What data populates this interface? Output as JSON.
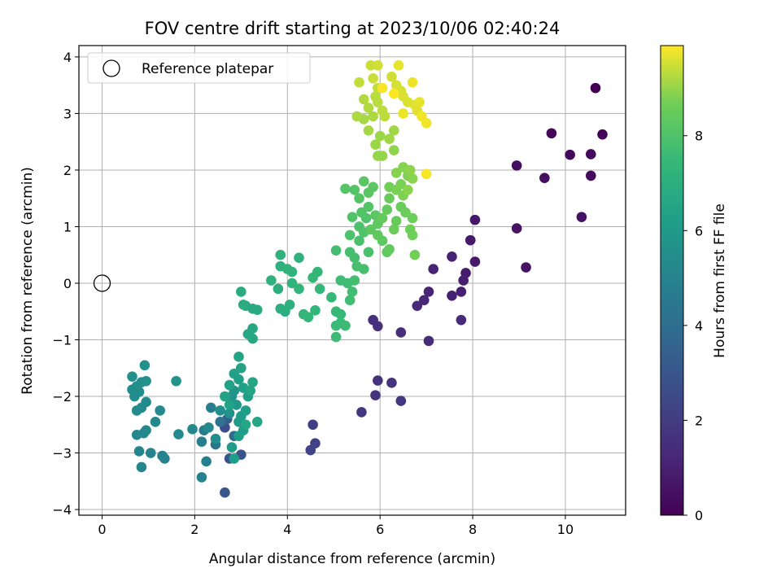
{
  "chart_data": {
    "type": "scatter",
    "title": "FOV centre drift starting at 2023/10/06 02:40:24",
    "xlabel": "Angular distance from reference (arcmin)",
    "ylabel": "Rotation from reference (arcmin)",
    "xlim": [
      -0.5,
      11.3
    ],
    "ylim": [
      -4.1,
      4.2
    ],
    "xticks": [
      0,
      2,
      4,
      6,
      8,
      10
    ],
    "yticks": [
      -4,
      -3,
      -2,
      -1,
      0,
      1,
      2,
      3,
      4
    ],
    "grid": true,
    "colormap": "viridis",
    "colorbar": {
      "label": "Hours from first FF file",
      "range": [
        0,
        9.9
      ],
      "ticks": [
        0,
        2,
        4,
        6,
        8
      ]
    },
    "legend": {
      "position": "top-left",
      "entries": [
        "Reference platepar"
      ]
    },
    "reference_point": {
      "x": 0,
      "y": 0
    },
    "points": [
      {
        "x": 10.65,
        "y": 3.45,
        "h": 0.0
      },
      {
        "x": 10.8,
        "y": 2.63,
        "h": 0.1
      },
      {
        "x": 9.7,
        "y": 2.65,
        "h": 0.2
      },
      {
        "x": 10.1,
        "y": 2.27,
        "h": 0.25
      },
      {
        "x": 10.55,
        "y": 2.28,
        "h": 0.3
      },
      {
        "x": 10.55,
        "y": 1.9,
        "h": 0.35
      },
      {
        "x": 9.55,
        "y": 1.86,
        "h": 0.4
      },
      {
        "x": 8.95,
        "y": 2.08,
        "h": 0.45
      },
      {
        "x": 10.35,
        "y": 1.17,
        "h": 0.5
      },
      {
        "x": 8.95,
        "y": 0.97,
        "h": 0.55
      },
      {
        "x": 9.15,
        "y": 0.28,
        "h": 0.6
      },
      {
        "x": 8.05,
        "y": 1.12,
        "h": 0.7
      },
      {
        "x": 7.95,
        "y": 0.76,
        "h": 0.75
      },
      {
        "x": 8.05,
        "y": 0.38,
        "h": 0.8
      },
      {
        "x": 7.85,
        "y": 0.18,
        "h": 0.85
      },
      {
        "x": 7.8,
        "y": 0.05,
        "h": 0.9
      },
      {
        "x": 7.75,
        "y": -0.15,
        "h": 0.95
      },
      {
        "x": 7.55,
        "y": -0.22,
        "h": 1.0
      },
      {
        "x": 7.55,
        "y": 0.47,
        "h": 1.05
      },
      {
        "x": 7.15,
        "y": 0.25,
        "h": 1.1
      },
      {
        "x": 7.05,
        "y": -0.15,
        "h": 1.15
      },
      {
        "x": 6.95,
        "y": -0.3,
        "h": 1.2
      },
      {
        "x": 6.8,
        "y": -0.4,
        "h": 1.25
      },
      {
        "x": 7.75,
        "y": -0.65,
        "h": 1.3
      },
      {
        "x": 7.05,
        "y": -1.02,
        "h": 1.4
      },
      {
        "x": 6.45,
        "y": -0.87,
        "h": 1.45
      },
      {
        "x": 5.85,
        "y": -0.65,
        "h": 1.5
      },
      {
        "x": 5.95,
        "y": -0.76,
        "h": 1.55
      },
      {
        "x": 5.95,
        "y": -1.72,
        "h": 1.6
      },
      {
        "x": 6.25,
        "y": -1.76,
        "h": 1.65
      },
      {
        "x": 5.9,
        "y": -1.98,
        "h": 1.7
      },
      {
        "x": 6.45,
        "y": -2.08,
        "h": 1.75
      },
      {
        "x": 5.6,
        "y": -2.28,
        "h": 1.85
      },
      {
        "x": 4.55,
        "y": -2.5,
        "h": 2.1
      },
      {
        "x": 4.6,
        "y": -2.83,
        "h": 2.2
      },
      {
        "x": 4.5,
        "y": -2.95,
        "h": 2.25
      },
      {
        "x": 2.65,
        "y": -2.55,
        "h": 2.6
      },
      {
        "x": 2.75,
        "y": -3.1,
        "h": 2.8
      },
      {
        "x": 3.0,
        "y": -3.03,
        "h": 2.9
      },
      {
        "x": 2.65,
        "y": -3.7,
        "h": 3.0
      },
      {
        "x": 2.7,
        "y": -2.4,
        "h": 3.4
      },
      {
        "x": 2.85,
        "y": -2.7,
        "h": 3.8
      },
      {
        "x": 2.55,
        "y": -2.45,
        "h": 4.2
      },
      {
        "x": 2.45,
        "y": -2.85,
        "h": 4.4
      },
      {
        "x": 2.2,
        "y": -2.6,
        "h": 4.6
      },
      {
        "x": 2.35,
        "y": -2.2,
        "h": 4.7
      },
      {
        "x": 2.15,
        "y": -2.8,
        "h": 4.8
      },
      {
        "x": 2.25,
        "y": -3.15,
        "h": 4.9
      },
      {
        "x": 2.15,
        "y": -3.43,
        "h": 5.0
      },
      {
        "x": 1.3,
        "y": -3.05,
        "h": 4.9
      },
      {
        "x": 1.35,
        "y": -3.1,
        "h": 5.0
      },
      {
        "x": 1.05,
        "y": -3.0,
        "h": 5.05
      },
      {
        "x": 0.85,
        "y": -3.25,
        "h": 5.1
      },
      {
        "x": 0.8,
        "y": -2.97,
        "h": 5.1
      },
      {
        "x": 0.9,
        "y": -2.65,
        "h": 5.15
      },
      {
        "x": 0.95,
        "y": -2.6,
        "h": 5.2
      },
      {
        "x": 0.75,
        "y": -2.68,
        "h": 5.2
      },
      {
        "x": 1.15,
        "y": -2.45,
        "h": 5.25
      },
      {
        "x": 1.25,
        "y": -2.25,
        "h": 5.3
      },
      {
        "x": 0.75,
        "y": -2.25,
        "h": 5.3
      },
      {
        "x": 0.85,
        "y": -2.2,
        "h": 5.35
      },
      {
        "x": 0.95,
        "y": -2.1,
        "h": 5.35
      },
      {
        "x": 0.7,
        "y": -2.0,
        "h": 5.4
      },
      {
        "x": 0.8,
        "y": -1.92,
        "h": 5.45
      },
      {
        "x": 0.65,
        "y": -1.88,
        "h": 5.45
      },
      {
        "x": 0.75,
        "y": -1.82,
        "h": 5.5
      },
      {
        "x": 0.85,
        "y": -1.75,
        "h": 5.5
      },
      {
        "x": 0.95,
        "y": -1.73,
        "h": 5.55
      },
      {
        "x": 0.65,
        "y": -1.65,
        "h": 5.55
      },
      {
        "x": 0.92,
        "y": -1.45,
        "h": 5.6
      },
      {
        "x": 1.6,
        "y": -1.73,
        "h": 5.7
      },
      {
        "x": 1.65,
        "y": -2.67,
        "h": 5.3
      },
      {
        "x": 1.95,
        "y": -2.58,
        "h": 5.2
      },
      {
        "x": 2.3,
        "y": -2.55,
        "h": 5.3
      },
      {
        "x": 2.45,
        "y": -2.75,
        "h": 5.4
      },
      {
        "x": 2.55,
        "y": -2.25,
        "h": 5.5
      },
      {
        "x": 2.75,
        "y": -2.3,
        "h": 5.6
      },
      {
        "x": 2.8,
        "y": -2.0,
        "h": 5.7
      },
      {
        "x": 2.85,
        "y": -1.9,
        "h": 5.8
      },
      {
        "x": 2.9,
        "y": -2.15,
        "h": 5.9
      },
      {
        "x": 2.95,
        "y": -2.45,
        "h": 6.0
      },
      {
        "x": 3.0,
        "y": -2.35,
        "h": 6.05
      },
      {
        "x": 3.05,
        "y": -2.6,
        "h": 6.1
      },
      {
        "x": 2.8,
        "y": -2.9,
        "h": 6.1
      },
      {
        "x": 2.85,
        "y": -3.1,
        "h": 6.15
      },
      {
        "x": 2.95,
        "y": -2.7,
        "h": 6.15
      },
      {
        "x": 3.1,
        "y": -2.25,
        "h": 6.2
      },
      {
        "x": 3.15,
        "y": -2.0,
        "h": 6.25
      },
      {
        "x": 3.05,
        "y": -1.85,
        "h": 6.3
      },
      {
        "x": 2.95,
        "y": -1.7,
        "h": 6.3
      },
      {
        "x": 2.85,
        "y": -1.6,
        "h": 6.35
      },
      {
        "x": 2.75,
        "y": -1.8,
        "h": 6.35
      },
      {
        "x": 2.65,
        "y": -2.0,
        "h": 6.4
      },
      {
        "x": 2.75,
        "y": -2.15,
        "h": 6.4
      },
      {
        "x": 3.0,
        "y": -1.5,
        "h": 6.45
      },
      {
        "x": 2.95,
        "y": -1.3,
        "h": 6.5
      },
      {
        "x": 3.2,
        "y": -1.9,
        "h": 6.5
      },
      {
        "x": 3.25,
        "y": -1.75,
        "h": 6.55
      },
      {
        "x": 3.35,
        "y": -2.45,
        "h": 6.6
      },
      {
        "x": 3.1,
        "y": -2.5,
        "h": 6.6
      },
      {
        "x": 3.15,
        "y": -0.9,
        "h": 6.65
      },
      {
        "x": 3.25,
        "y": -0.8,
        "h": 6.7
      },
      {
        "x": 3.25,
        "y": -0.98,
        "h": 6.7
      },
      {
        "x": 3.1,
        "y": -0.4,
        "h": 6.75
      },
      {
        "x": 3.25,
        "y": -0.45,
        "h": 6.8
      },
      {
        "x": 3.35,
        "y": -0.47,
        "h": 6.8
      },
      {
        "x": 3.0,
        "y": -0.15,
        "h": 6.85
      },
      {
        "x": 3.05,
        "y": -0.38,
        "h": 6.9
      },
      {
        "x": 3.8,
        "y": -0.1,
        "h": 6.95
      },
      {
        "x": 3.85,
        "y": -0.45,
        "h": 7.0
      },
      {
        "x": 3.95,
        "y": -0.5,
        "h": 7.0
      },
      {
        "x": 4.05,
        "y": -0.38,
        "h": 7.05
      },
      {
        "x": 3.65,
        "y": 0.05,
        "h": 7.1
      },
      {
        "x": 3.85,
        "y": 0.3,
        "h": 7.1
      },
      {
        "x": 4.1,
        "y": 0.2,
        "h": 7.15
      },
      {
        "x": 4.25,
        "y": 0.45,
        "h": 7.2
      },
      {
        "x": 3.85,
        "y": 0.5,
        "h": 7.2
      },
      {
        "x": 4.0,
        "y": 0.25,
        "h": 7.25
      },
      {
        "x": 4.1,
        "y": 0.0,
        "h": 7.25
      },
      {
        "x": 4.25,
        "y": -0.1,
        "h": 7.3
      },
      {
        "x": 4.35,
        "y": -0.55,
        "h": 7.3
      },
      {
        "x": 4.45,
        "y": -0.6,
        "h": 7.35
      },
      {
        "x": 4.6,
        "y": -0.48,
        "h": 7.35
      },
      {
        "x": 4.55,
        "y": 0.1,
        "h": 7.4
      },
      {
        "x": 4.65,
        "y": 0.2,
        "h": 7.4
      },
      {
        "x": 4.7,
        "y": -0.1,
        "h": 7.45
      },
      {
        "x": 4.95,
        "y": -0.25,
        "h": 7.45
      },
      {
        "x": 5.05,
        "y": -0.5,
        "h": 7.5
      },
      {
        "x": 5.15,
        "y": -0.55,
        "h": 7.5
      },
      {
        "x": 5.05,
        "y": -0.75,
        "h": 7.55
      },
      {
        "x": 5.15,
        "y": -0.7,
        "h": 7.55
      },
      {
        "x": 5.25,
        "y": -0.75,
        "h": 7.6
      },
      {
        "x": 5.05,
        "y": -0.95,
        "h": 7.6
      },
      {
        "x": 5.15,
        "y": 0.05,
        "h": 7.65
      },
      {
        "x": 5.3,
        "y": 0.0,
        "h": 7.65
      },
      {
        "x": 5.35,
        "y": -0.3,
        "h": 7.7
      },
      {
        "x": 5.4,
        "y": -0.15,
        "h": 7.7
      },
      {
        "x": 5.45,
        "y": 0.05,
        "h": 7.75
      },
      {
        "x": 5.05,
        "y": 0.58,
        "h": 7.75
      },
      {
        "x": 5.35,
        "y": 0.55,
        "h": 7.8
      },
      {
        "x": 5.45,
        "y": 0.45,
        "h": 7.8
      },
      {
        "x": 5.5,
        "y": 0.3,
        "h": 7.85
      },
      {
        "x": 5.65,
        "y": 0.25,
        "h": 7.85
      },
      {
        "x": 5.75,
        "y": 0.55,
        "h": 7.9
      },
      {
        "x": 5.55,
        "y": 0.75,
        "h": 7.9
      },
      {
        "x": 5.35,
        "y": 0.85,
        "h": 7.95
      },
      {
        "x": 5.55,
        "y": 1.0,
        "h": 7.95
      },
      {
        "x": 5.65,
        "y": 0.9,
        "h": 8.0
      },
      {
        "x": 5.7,
        "y": 1.15,
        "h": 8.0
      },
      {
        "x": 5.4,
        "y": 1.17,
        "h": 8.05
      },
      {
        "x": 5.6,
        "y": 1.25,
        "h": 8.05
      },
      {
        "x": 5.75,
        "y": 1.35,
        "h": 8.1
      },
      {
        "x": 5.25,
        "y": 1.67,
        "h": 8.1
      },
      {
        "x": 5.45,
        "y": 1.65,
        "h": 8.15
      },
      {
        "x": 5.55,
        "y": 1.5,
        "h": 8.15
      },
      {
        "x": 5.65,
        "y": 1.8,
        "h": 8.2
      },
      {
        "x": 5.75,
        "y": 1.6,
        "h": 8.2
      },
      {
        "x": 5.85,
        "y": 1.7,
        "h": 8.25
      },
      {
        "x": 5.9,
        "y": 1.2,
        "h": 8.25
      },
      {
        "x": 5.95,
        "y": 1.05,
        "h": 8.3
      },
      {
        "x": 5.8,
        "y": 0.95,
        "h": 8.3
      },
      {
        "x": 5.95,
        "y": 0.85,
        "h": 8.35
      },
      {
        "x": 6.05,
        "y": 0.75,
        "h": 8.35
      },
      {
        "x": 6.15,
        "y": 0.55,
        "h": 8.4
      },
      {
        "x": 6.2,
        "y": 0.6,
        "h": 8.4
      },
      {
        "x": 6.05,
        "y": 1.15,
        "h": 8.45
      },
      {
        "x": 6.15,
        "y": 1.3,
        "h": 8.45
      },
      {
        "x": 6.2,
        "y": 1.5,
        "h": 8.5
      },
      {
        "x": 6.35,
        "y": 1.1,
        "h": 8.5
      },
      {
        "x": 6.3,
        "y": 0.95,
        "h": 8.55
      },
      {
        "x": 6.45,
        "y": 1.35,
        "h": 8.55
      },
      {
        "x": 6.55,
        "y": 1.25,
        "h": 8.6
      },
      {
        "x": 6.7,
        "y": 1.15,
        "h": 8.6
      },
      {
        "x": 6.65,
        "y": 0.95,
        "h": 8.65
      },
      {
        "x": 6.7,
        "y": 0.85,
        "h": 8.65
      },
      {
        "x": 6.75,
        "y": 0.5,
        "h": 8.7
      },
      {
        "x": 6.2,
        "y": 1.7,
        "h": 8.7
      },
      {
        "x": 6.35,
        "y": 1.65,
        "h": 8.75
      },
      {
        "x": 6.45,
        "y": 1.75,
        "h": 8.75
      },
      {
        "x": 6.5,
        "y": 1.55,
        "h": 8.8
      },
      {
        "x": 6.6,
        "y": 1.9,
        "h": 8.8
      },
      {
        "x": 6.35,
        "y": 1.95,
        "h": 8.85
      },
      {
        "x": 6.5,
        "y": 2.05,
        "h": 8.85
      },
      {
        "x": 6.6,
        "y": 1.65,
        "h": 8.9
      },
      {
        "x": 6.7,
        "y": 1.85,
        "h": 8.9
      },
      {
        "x": 6.65,
        "y": 2.0,
        "h": 8.95
      },
      {
        "x": 6.3,
        "y": 2.35,
        "h": 8.95
      },
      {
        "x": 6.05,
        "y": 2.25,
        "h": 9.0
      },
      {
        "x": 5.95,
        "y": 2.25,
        "h": 9.0
      },
      {
        "x": 5.9,
        "y": 2.45,
        "h": 9.05
      },
      {
        "x": 6.0,
        "y": 2.6,
        "h": 9.05
      },
      {
        "x": 6.2,
        "y": 2.55,
        "h": 9.1
      },
      {
        "x": 6.3,
        "y": 2.7,
        "h": 9.1
      },
      {
        "x": 5.75,
        "y": 2.7,
        "h": 9.15
      },
      {
        "x": 5.65,
        "y": 2.9,
        "h": 9.15
      },
      {
        "x": 5.85,
        "y": 2.95,
        "h": 9.2
      },
      {
        "x": 5.5,
        "y": 2.95,
        "h": 9.2
      },
      {
        "x": 5.75,
        "y": 3.1,
        "h": 9.25
      },
      {
        "x": 5.65,
        "y": 3.25,
        "h": 9.25
      },
      {
        "x": 5.9,
        "y": 3.3,
        "h": 9.3
      },
      {
        "x": 5.95,
        "y": 3.2,
        "h": 9.3
      },
      {
        "x": 6.05,
        "y": 3.05,
        "h": 9.35
      },
      {
        "x": 6.1,
        "y": 2.95,
        "h": 9.35
      },
      {
        "x": 5.95,
        "y": 3.45,
        "h": 9.4
      },
      {
        "x": 5.55,
        "y": 3.55,
        "h": 9.4
      },
      {
        "x": 5.85,
        "y": 3.62,
        "h": 9.45
      },
      {
        "x": 5.8,
        "y": 3.85,
        "h": 9.45
      },
      {
        "x": 5.95,
        "y": 3.85,
        "h": 9.5
      },
      {
        "x": 6.25,
        "y": 3.65,
        "h": 9.5
      },
      {
        "x": 6.35,
        "y": 3.5,
        "h": 9.55
      },
      {
        "x": 6.45,
        "y": 3.4,
        "h": 9.55
      },
      {
        "x": 6.5,
        "y": 3.3,
        "h": 9.6
      },
      {
        "x": 6.6,
        "y": 3.2,
        "h": 9.6
      },
      {
        "x": 6.75,
        "y": 3.15,
        "h": 9.65
      },
      {
        "x": 6.8,
        "y": 3.05,
        "h": 9.65
      },
      {
        "x": 6.85,
        "y": 3.2,
        "h": 9.7
      },
      {
        "x": 6.4,
        "y": 3.85,
        "h": 9.7
      },
      {
        "x": 6.7,
        "y": 3.55,
        "h": 9.75
      },
      {
        "x": 6.5,
        "y": 3.0,
        "h": 9.75
      },
      {
        "x": 6.9,
        "y": 2.95,
        "h": 9.8
      },
      {
        "x": 7.0,
        "y": 2.83,
        "h": 9.8
      },
      {
        "x": 7.0,
        "y": 1.93,
        "h": 9.85
      },
      {
        "x": 6.05,
        "y": 3.45,
        "h": 9.85
      },
      {
        "x": 6.3,
        "y": 3.35,
        "h": 9.9
      }
    ]
  }
}
